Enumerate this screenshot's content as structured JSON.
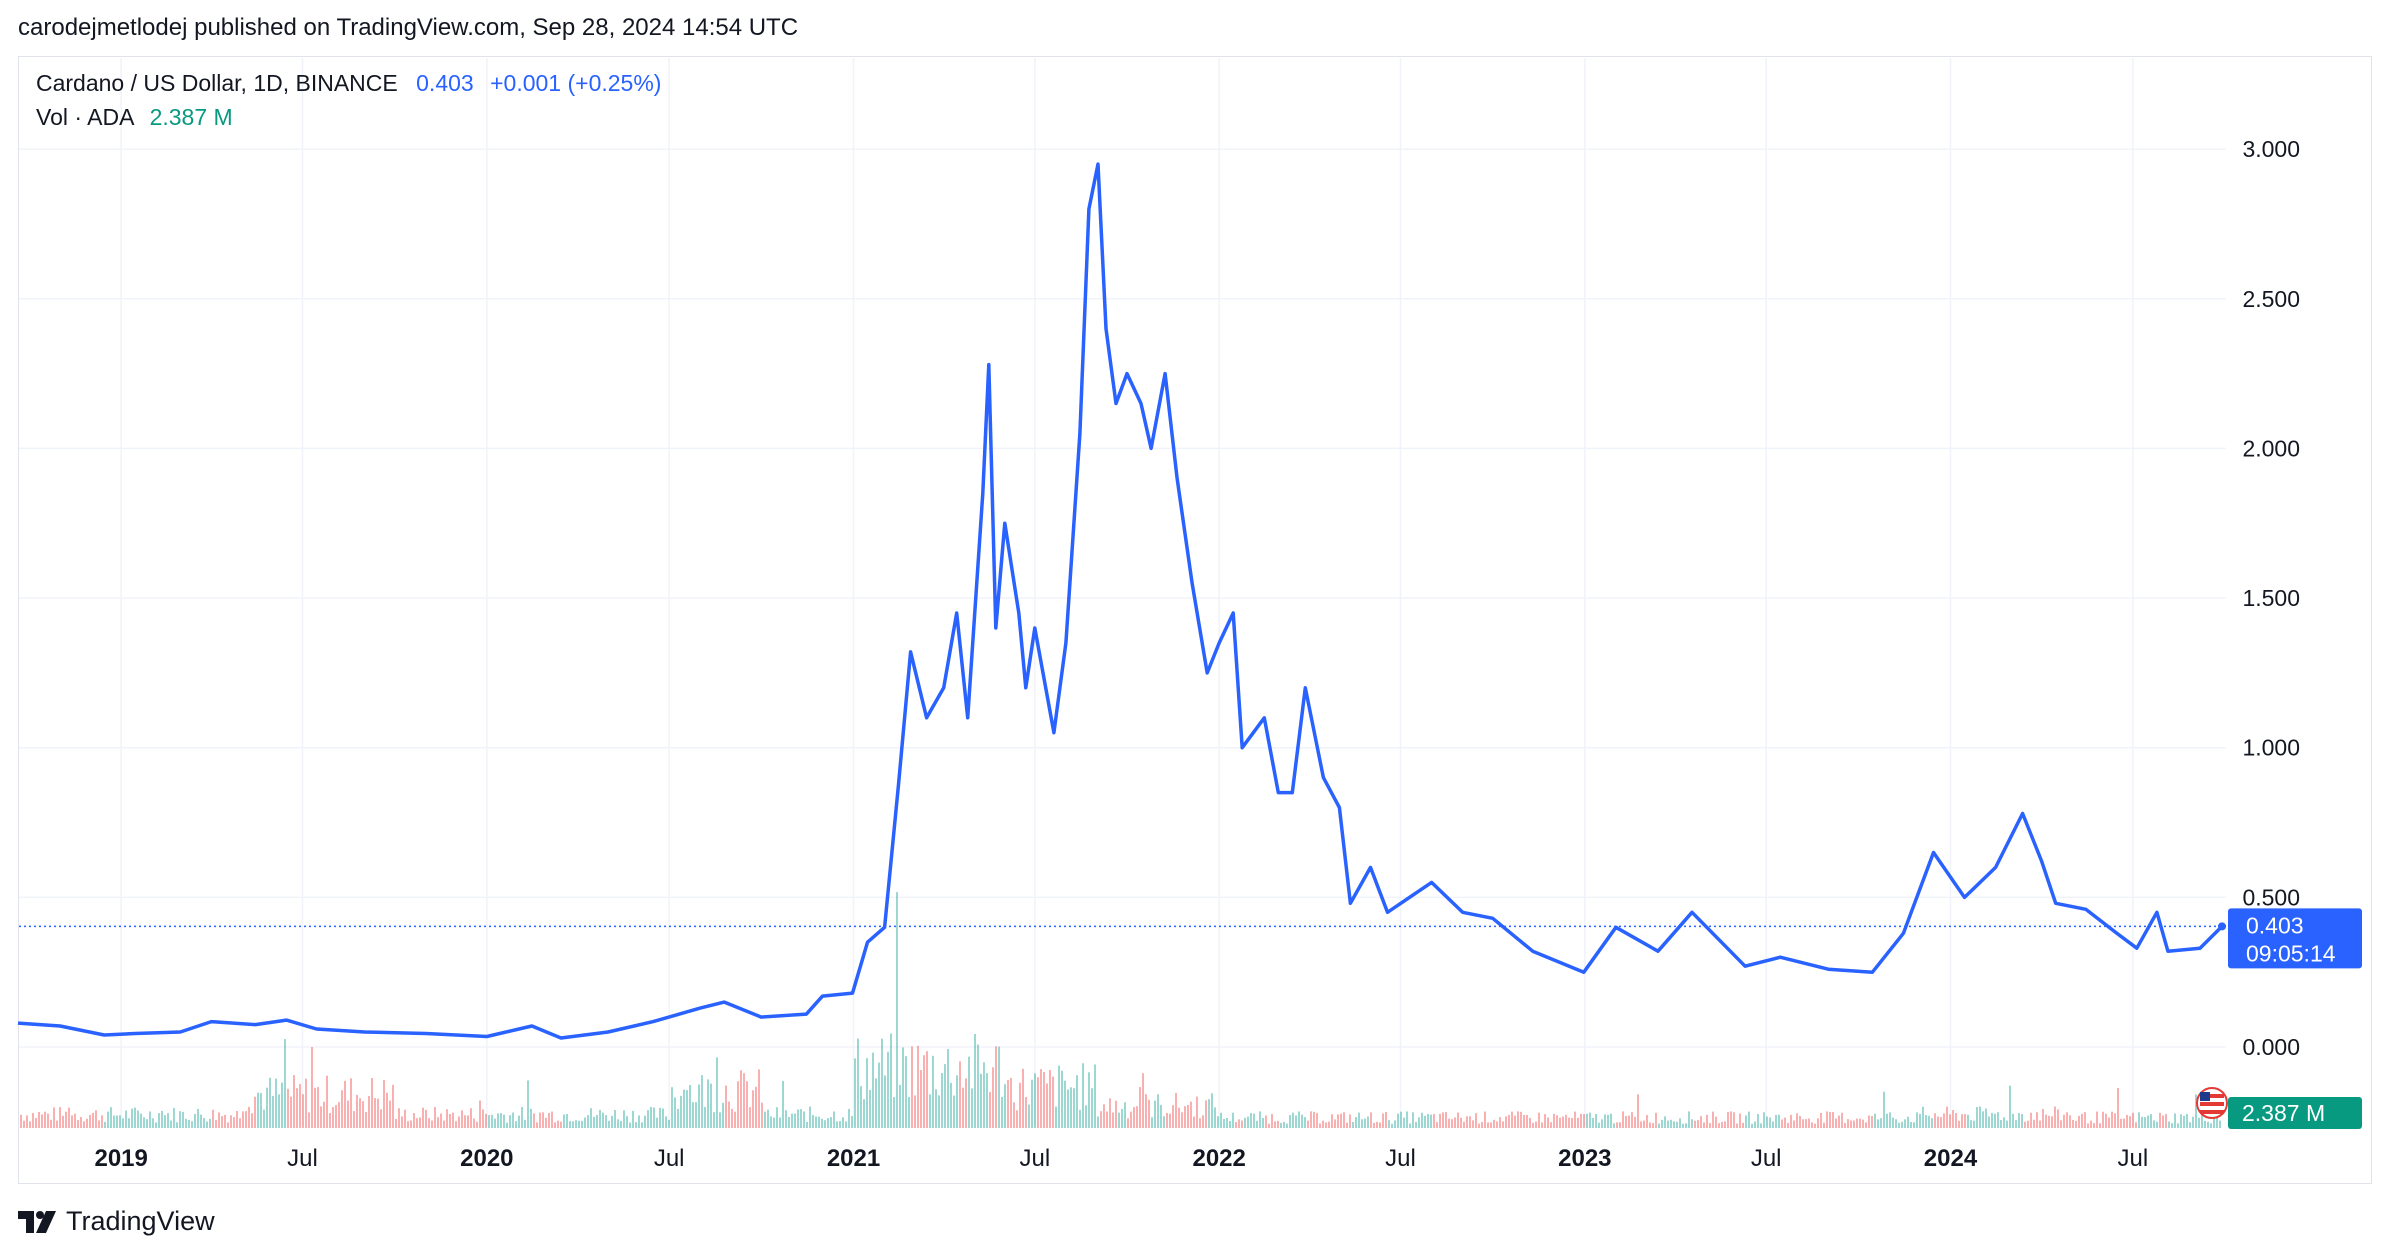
{
  "header": {
    "published_text": "carodejmetlodej published on TradingView.com, Sep 28, 2024 14:54 UTC"
  },
  "legend": {
    "symbol": "Cardano / US Dollar, 1D, BINANCE",
    "last_price": "0.403",
    "change": "+0.001 (+0.25%)",
    "vol_label": "Vol · ADA",
    "vol_value": "2.387 M"
  },
  "price_badge": {
    "price": "0.403",
    "countdown": "09:05:14"
  },
  "volume_badge": {
    "value": "2.387 M"
  },
  "footer": {
    "brand": "TradingView"
  },
  "colors": {
    "line": "#2962ff",
    "grid": "#f0f3fa",
    "vol_up": "#26a69a",
    "vol_down": "#ef5350",
    "text": "#131722",
    "badge_blue": "#2962ff",
    "badge_green": "#089981"
  },
  "chart_data": {
    "type": "line",
    "title": "Cardano / US Dollar, 1D, BINANCE",
    "x_range": [
      "2018-09-20",
      "2024-09-28"
    ],
    "ylim": [
      0,
      3.0
    ],
    "y_ticks": [
      "3.000",
      "2.500",
      "2.000",
      "1.500",
      "1.000",
      "0.500",
      "0.000"
    ],
    "x_ticks": [
      {
        "label": "2019",
        "date": "2019-01-01",
        "bold": true
      },
      {
        "label": "Jul",
        "date": "2019-07-01",
        "bold": false
      },
      {
        "label": "2020",
        "date": "2020-01-01",
        "bold": true
      },
      {
        "label": "Jul",
        "date": "2020-07-01",
        "bold": false
      },
      {
        "label": "2021",
        "date": "2021-01-01",
        "bold": true
      },
      {
        "label": "Jul",
        "date": "2021-07-01",
        "bold": false
      },
      {
        "label": "2022",
        "date": "2022-01-01",
        "bold": true
      },
      {
        "label": "Jul",
        "date": "2022-07-01",
        "bold": false
      },
      {
        "label": "2023",
        "date": "2023-01-01",
        "bold": true
      },
      {
        "label": "Jul",
        "date": "2023-07-01",
        "bold": false
      },
      {
        "label": "2024",
        "date": "2024-01-01",
        "bold": true
      },
      {
        "label": "Jul",
        "date": "2024-07-01",
        "bold": false
      }
    ],
    "series": [
      {
        "points": [
          [
            "2018-09-20",
            0.08
          ],
          [
            "2018-11-01",
            0.07
          ],
          [
            "2018-12-15",
            0.04
          ],
          [
            "2019-01-15",
            0.045
          ],
          [
            "2019-03-01",
            0.05
          ],
          [
            "2019-04-01",
            0.085
          ],
          [
            "2019-05-15",
            0.075
          ],
          [
            "2019-06-15",
            0.09
          ],
          [
            "2019-07-15",
            0.06
          ],
          [
            "2019-09-01",
            0.05
          ],
          [
            "2019-11-01",
            0.045
          ],
          [
            "2020-01-01",
            0.035
          ],
          [
            "2020-02-15",
            0.07
          ],
          [
            "2020-03-15",
            0.03
          ],
          [
            "2020-05-01",
            0.05
          ],
          [
            "2020-06-15",
            0.085
          ],
          [
            "2020-08-01",
            0.13
          ],
          [
            "2020-08-25",
            0.15
          ],
          [
            "2020-10-01",
            0.1
          ],
          [
            "2020-11-15",
            0.11
          ],
          [
            "2020-12-01",
            0.17
          ],
          [
            "2020-12-31",
            0.18
          ],
          [
            "2021-01-15",
            0.35
          ],
          [
            "2021-02-01",
            0.4
          ],
          [
            "2021-02-15",
            0.88
          ],
          [
            "2021-02-27",
            1.32
          ],
          [
            "2021-03-15",
            1.1
          ],
          [
            "2021-04-01",
            1.2
          ],
          [
            "2021-04-14",
            1.45
          ],
          [
            "2021-04-25",
            1.1
          ],
          [
            "2021-05-10",
            1.85
          ],
          [
            "2021-05-16",
            2.28
          ],
          [
            "2021-05-23",
            1.4
          ],
          [
            "2021-06-01",
            1.75
          ],
          [
            "2021-06-15",
            1.45
          ],
          [
            "2021-06-22",
            1.2
          ],
          [
            "2021-07-01",
            1.4
          ],
          [
            "2021-07-20",
            1.05
          ],
          [
            "2021-08-01",
            1.35
          ],
          [
            "2021-08-15",
            2.05
          ],
          [
            "2021-08-24",
            2.8
          ],
          [
            "2021-09-02",
            2.95
          ],
          [
            "2021-09-10",
            2.4
          ],
          [
            "2021-09-20",
            2.15
          ],
          [
            "2021-10-01",
            2.25
          ],
          [
            "2021-10-15",
            2.15
          ],
          [
            "2021-10-25",
            2.0
          ],
          [
            "2021-11-08",
            2.25
          ],
          [
            "2021-11-20",
            1.9
          ],
          [
            "2021-12-05",
            1.55
          ],
          [
            "2021-12-20",
            1.25
          ],
          [
            "2022-01-01",
            1.35
          ],
          [
            "2022-01-15",
            1.45
          ],
          [
            "2022-01-24",
            1.0
          ],
          [
            "2022-02-15",
            1.1
          ],
          [
            "2022-03-01",
            0.85
          ],
          [
            "2022-03-15",
            0.85
          ],
          [
            "2022-03-28",
            1.2
          ],
          [
            "2022-04-15",
            0.9
          ],
          [
            "2022-05-01",
            0.8
          ],
          [
            "2022-05-12",
            0.48
          ],
          [
            "2022-06-01",
            0.6
          ],
          [
            "2022-06-18",
            0.45
          ],
          [
            "2022-08-01",
            0.55
          ],
          [
            "2022-09-01",
            0.45
          ],
          [
            "2022-10-01",
            0.43
          ],
          [
            "2022-11-10",
            0.32
          ],
          [
            "2022-12-31",
            0.25
          ],
          [
            "2023-02-01",
            0.4
          ],
          [
            "2023-03-15",
            0.32
          ],
          [
            "2023-04-18",
            0.45
          ],
          [
            "2023-06-10",
            0.27
          ],
          [
            "2023-07-15",
            0.3
          ],
          [
            "2023-09-01",
            0.26
          ],
          [
            "2023-10-15",
            0.25
          ],
          [
            "2023-11-15",
            0.38
          ],
          [
            "2023-12-15",
            0.65
          ],
          [
            "2024-01-15",
            0.5
          ],
          [
            "2024-02-15",
            0.6
          ],
          [
            "2024-03-13",
            0.78
          ],
          [
            "2024-04-01",
            0.62
          ],
          [
            "2024-04-15",
            0.48
          ],
          [
            "2024-05-15",
            0.46
          ],
          [
            "2024-06-15",
            0.38
          ],
          [
            "2024-07-05",
            0.33
          ],
          [
            "2024-07-25",
            0.45
          ],
          [
            "2024-08-05",
            0.32
          ],
          [
            "2024-09-06",
            0.33
          ],
          [
            "2024-09-28",
            0.403
          ]
        ]
      }
    ]
  }
}
